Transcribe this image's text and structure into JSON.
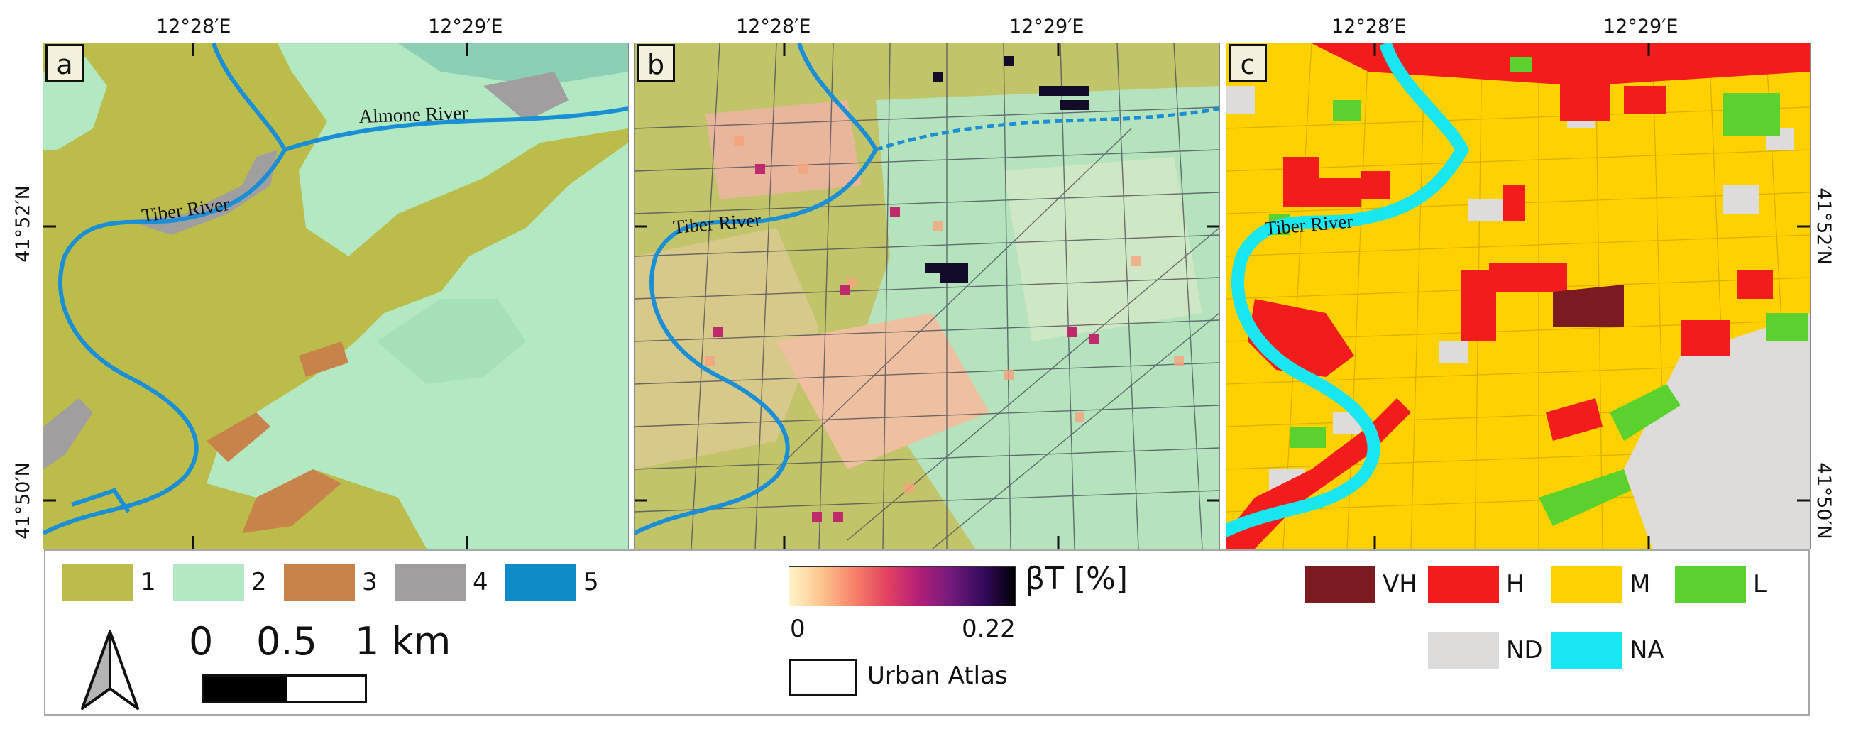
{
  "coords": {
    "top": [
      "12°28′E",
      "12°29′E"
    ],
    "left": [
      "41°52′N",
      "41°50′N"
    ],
    "right": [
      "41°52′N",
      "41°50′N"
    ]
  },
  "panels": {
    "a": {
      "label": "a",
      "rivers": [
        "Almone River",
        "Tiber River"
      ]
    },
    "b": {
      "label": "b",
      "rivers": [
        "Tiber River"
      ]
    },
    "c": {
      "label": "c",
      "rivers": [
        "Tiber River"
      ]
    }
  },
  "legend_geology": [
    {
      "label": "1",
      "color": "#bcbc4a"
    },
    {
      "label": "2",
      "color": "#b2e8c2"
    },
    {
      "label": "3",
      "color": "#c8834a"
    },
    {
      "label": "4",
      "color": "#a09e9e"
    },
    {
      "label": "5",
      "color": "#0f8bc7"
    }
  ],
  "scale": {
    "ticks": [
      "0",
      "0.5",
      "1 km"
    ]
  },
  "north_arrow": "north-arrow-icon",
  "colorbar": {
    "title": "βT [%]",
    "min": "0",
    "max": "0.22",
    "overlay_label": "Urban Atlas"
  },
  "legend_risk": [
    {
      "label": "VH",
      "color": "#7b1a1f"
    },
    {
      "label": "H",
      "color": "#f21c1c"
    },
    {
      "label": "M",
      "color": "#ffd100"
    },
    {
      "label": "L",
      "color": "#5ad12c"
    },
    {
      "label": "ND",
      "color": "#dedcdb"
    },
    {
      "label": "NA",
      "color": "#18e6f0"
    }
  ]
}
